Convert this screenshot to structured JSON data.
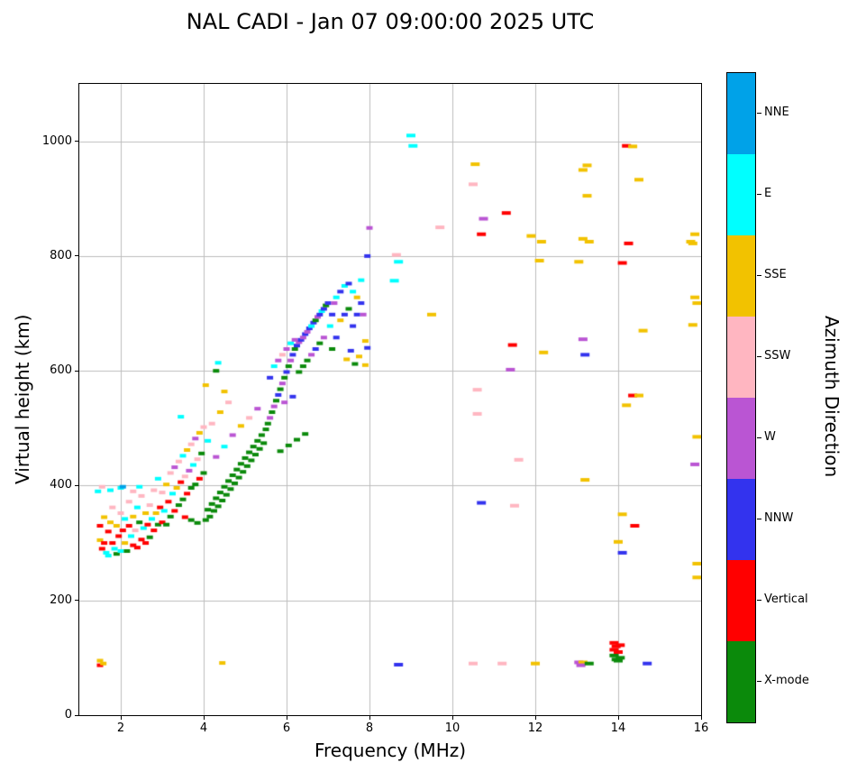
{
  "chart_data": {
    "type": "scatter",
    "title": "NAL CADI - Jan 07 09:00:00 2025 UTC",
    "xlabel": "Frequency (MHz)",
    "ylabel": "Virtual height (km)",
    "xlim": [
      1,
      16
    ],
    "ylim": [
      0,
      1100
    ],
    "xticks": [
      2,
      4,
      6,
      8,
      10,
      12,
      14,
      16
    ],
    "yticks": [
      0,
      200,
      400,
      600,
      800,
      1000
    ],
    "grid": true,
    "grid_color": "#bdbdbd",
    "colorbar": {
      "label": "Azimuth Direction",
      "categories": [
        {
          "label": "NNE",
          "color": "#00A2E8"
        },
        {
          "label": "E",
          "color": "#00FFFF"
        },
        {
          "label": "SSE",
          "color": "#F2C200"
        },
        {
          "label": "SSW",
          "color": "#FFB6C1"
        },
        {
          "label": "W",
          "color": "#BA55D3"
        },
        {
          "label": "NNW",
          "color": "#3333EE"
        },
        {
          "label": "Vertical",
          "color": "#FF0000"
        },
        {
          "label": "X-mode",
          "color": "#0B8A0B"
        }
      ]
    },
    "points": [
      [
        1.45,
        390,
        1
      ],
      [
        1.5,
        330,
        6
      ],
      [
        1.5,
        305,
        2
      ],
      [
        1.55,
        290,
        6
      ],
      [
        1.6,
        300,
        6
      ],
      [
        1.6,
        345,
        2
      ],
      [
        1.65,
        283,
        1
      ],
      [
        1.7,
        278,
        1
      ],
      [
        1.7,
        320,
        6
      ],
      [
        1.75,
        336,
        2
      ],
      [
        1.8,
        300,
        6
      ],
      [
        1.8,
        362,
        3
      ],
      [
        1.85,
        290,
        1
      ],
      [
        1.9,
        281,
        7
      ],
      [
        1.9,
        330,
        2
      ],
      [
        1.95,
        312,
        6
      ],
      [
        2.0,
        286,
        1
      ],
      [
        2.0,
        352,
        3
      ],
      [
        2.0,
        396,
        1
      ],
      [
        2.05,
        322,
        6
      ],
      [
        2.1,
        300,
        2
      ],
      [
        2.1,
        342,
        1
      ],
      [
        2.15,
        286,
        7
      ],
      [
        2.2,
        330,
        6
      ],
      [
        2.2,
        372,
        3
      ],
      [
        2.25,
        312,
        1
      ],
      [
        2.3,
        296,
        6
      ],
      [
        2.3,
        346,
        2
      ],
      [
        2.35,
        322,
        3
      ],
      [
        2.4,
        292,
        6
      ],
      [
        2.4,
        362,
        1
      ],
      [
        2.45,
        336,
        7
      ],
      [
        2.5,
        306,
        6
      ],
      [
        2.5,
        382,
        3
      ],
      [
        2.55,
        326,
        1
      ],
      [
        2.6,
        300,
        6
      ],
      [
        2.6,
        352,
        2
      ],
      [
        1.55,
        398,
        3
      ],
      [
        1.75,
        392,
        1
      ],
      [
        2.05,
        398,
        0
      ],
      [
        2.3,
        390,
        3
      ],
      [
        2.45,
        398,
        1
      ],
      [
        2.65,
        332,
        6
      ],
      [
        2.7,
        310,
        7
      ],
      [
        2.7,
        366,
        3
      ],
      [
        2.75,
        342,
        1
      ],
      [
        2.8,
        322,
        6
      ],
      [
        2.8,
        392,
        3
      ],
      [
        2.85,
        352,
        2
      ],
      [
        2.9,
        332,
        7
      ],
      [
        2.9,
        412,
        1
      ],
      [
        2.95,
        362,
        6
      ],
      [
        3.0,
        336,
        6
      ],
      [
        3.0,
        388,
        3
      ],
      [
        3.05,
        356,
        1
      ],
      [
        3.1,
        332,
        7
      ],
      [
        3.1,
        402,
        2
      ],
      [
        3.15,
        372,
        6
      ],
      [
        3.2,
        346,
        7
      ],
      [
        3.2,
        422,
        3
      ],
      [
        3.25,
        386,
        1
      ],
      [
        3.3,
        356,
        6
      ],
      [
        3.3,
        432,
        4
      ],
      [
        3.35,
        396,
        2
      ],
      [
        3.4,
        366,
        7
      ],
      [
        3.4,
        442,
        3
      ],
      [
        3.45,
        406,
        6
      ],
      [
        3.5,
        376,
        7
      ],
      [
        3.5,
        452,
        1
      ],
      [
        3.55,
        416,
        3
      ],
      [
        3.6,
        386,
        6
      ],
      [
        3.6,
        462,
        2
      ],
      [
        3.65,
        426,
        4
      ],
      [
        3.7,
        396,
        7
      ],
      [
        3.7,
        472,
        3
      ],
      [
        3.75,
        436,
        1
      ],
      [
        3.8,
        402,
        7
      ],
      [
        3.8,
        482,
        4
      ],
      [
        3.85,
        446,
        3
      ],
      [
        3.9,
        412,
        6
      ],
      [
        3.9,
        492,
        2
      ],
      [
        3.95,
        456,
        7
      ],
      [
        4.0,
        422,
        7
      ],
      [
        4.0,
        502,
        3
      ],
      [
        3.45,
        520,
        1
      ],
      [
        3.55,
        345,
        6
      ],
      [
        3.7,
        340,
        7
      ],
      [
        3.85,
        335,
        7
      ],
      [
        4.05,
        340,
        7
      ],
      [
        4.1,
        358,
        7
      ],
      [
        4.1,
        478,
        1
      ],
      [
        4.15,
        346,
        7
      ],
      [
        4.2,
        368,
        7
      ],
      [
        4.2,
        508,
        3
      ],
      [
        4.25,
        356,
        7
      ],
      [
        4.3,
        378,
        7
      ],
      [
        4.3,
        450,
        4
      ],
      [
        4.35,
        364,
        7
      ],
      [
        4.4,
        388,
        7
      ],
      [
        4.4,
        528,
        2
      ],
      [
        4.45,
        374,
        7
      ],
      [
        4.5,
        398,
        7
      ],
      [
        4.5,
        468,
        1
      ],
      [
        4.55,
        384,
        7
      ],
      [
        4.6,
        408,
        7
      ],
      [
        4.6,
        545,
        3
      ],
      [
        4.65,
        394,
        7
      ],
      [
        4.7,
        418,
        7
      ],
      [
        4.7,
        488,
        4
      ],
      [
        4.75,
        404,
        7
      ],
      [
        4.8,
        428,
        7
      ],
      [
        4.85,
        414,
        7
      ],
      [
        4.9,
        438,
        7
      ],
      [
        4.9,
        504,
        2
      ],
      [
        4.95,
        424,
        7
      ],
      [
        5.0,
        448,
        7
      ],
      [
        5.05,
        434,
        7
      ],
      [
        5.1,
        458,
        7
      ],
      [
        5.1,
        518,
        3
      ],
      [
        5.15,
        444,
        7
      ],
      [
        5.2,
        468,
        7
      ],
      [
        5.25,
        454,
        7
      ],
      [
        5.3,
        478,
        7
      ],
      [
        5.3,
        534,
        4
      ],
      [
        5.35,
        464,
        7
      ],
      [
        5.4,
        488,
        7
      ],
      [
        5.45,
        474,
        7
      ],
      [
        5.5,
        498,
        7
      ],
      [
        4.3,
        600,
        7
      ],
      [
        4.35,
        614,
        1
      ],
      [
        4.5,
        564,
        2
      ],
      [
        4.05,
        575,
        2
      ],
      [
        5.55,
        508,
        7
      ],
      [
        5.6,
        518,
        4
      ],
      [
        5.6,
        588,
        5
      ],
      [
        5.65,
        528,
        7
      ],
      [
        5.7,
        538,
        4
      ],
      [
        5.7,
        608,
        1
      ],
      [
        5.75,
        548,
        7
      ],
      [
        5.8,
        558,
        5
      ],
      [
        5.8,
        618,
        4
      ],
      [
        5.85,
        568,
        7
      ],
      [
        5.9,
        578,
        4
      ],
      [
        5.9,
        628,
        3
      ],
      [
        5.95,
        588,
        7
      ],
      [
        6.0,
        598,
        5
      ],
      [
        6.0,
        638,
        4
      ],
      [
        6.05,
        608,
        7
      ],
      [
        6.1,
        618,
        4
      ],
      [
        6.1,
        648,
        1
      ],
      [
        6.15,
        628,
        5
      ],
      [
        6.2,
        638,
        7
      ],
      [
        6.2,
        654,
        4
      ],
      [
        6.25,
        644,
        5
      ],
      [
        6.3,
        650,
        4
      ],
      [
        6.3,
        598,
        7
      ],
      [
        6.35,
        654,
        5
      ],
      [
        6.4,
        658,
        4
      ],
      [
        6.4,
        608,
        7
      ],
      [
        6.45,
        664,
        5
      ],
      [
        6.5,
        668,
        4
      ],
      [
        6.5,
        618,
        7
      ],
      [
        6.55,
        674,
        5
      ],
      [
        6.6,
        678,
        1
      ],
      [
        6.6,
        628,
        4
      ],
      [
        6.65,
        684,
        5
      ],
      [
        6.7,
        688,
        7
      ],
      [
        6.7,
        638,
        5
      ],
      [
        6.75,
        694,
        4
      ],
      [
        6.8,
        698,
        5
      ],
      [
        6.8,
        648,
        7
      ],
      [
        6.85,
        704,
        1
      ],
      [
        6.9,
        708,
        5
      ],
      [
        6.9,
        658,
        4
      ],
      [
        6.95,
        714,
        7
      ],
      [
        7.0,
        718,
        5
      ],
      [
        5.85,
        460,
        7
      ],
      [
        6.05,
        470,
        7
      ],
      [
        6.25,
        480,
        7
      ],
      [
        6.45,
        490,
        7
      ],
      [
        5.95,
        545,
        4
      ],
      [
        6.15,
        555,
        5
      ],
      [
        7.05,
        678,
        1
      ],
      [
        7.1,
        698,
        5
      ],
      [
        7.1,
        638,
        7
      ],
      [
        7.15,
        718,
        4
      ],
      [
        7.2,
        728,
        1
      ],
      [
        7.2,
        658,
        5
      ],
      [
        7.3,
        738,
        5
      ],
      [
        7.3,
        688,
        2
      ],
      [
        7.4,
        748,
        1
      ],
      [
        7.4,
        698,
        5
      ],
      [
        7.5,
        752,
        5
      ],
      [
        7.5,
        708,
        7
      ],
      [
        7.6,
        738,
        1
      ],
      [
        7.6,
        678,
        5
      ],
      [
        7.7,
        728,
        2
      ],
      [
        7.7,
        698,
        5
      ],
      [
        7.8,
        758,
        1
      ],
      [
        7.8,
        718,
        5
      ],
      [
        7.85,
        698,
        4
      ],
      [
        7.9,
        652,
        2
      ],
      [
        7.95,
        800,
        5
      ],
      [
        8.0,
        849,
        4
      ],
      [
        7.45,
        620,
        2
      ],
      [
        7.55,
        635,
        5
      ],
      [
        7.65,
        612,
        7
      ],
      [
        7.75,
        625,
        2
      ],
      [
        7.9,
        610,
        2
      ],
      [
        7.95,
        640,
        5
      ],
      [
        8.6,
        757,
        1
      ],
      [
        8.7,
        790,
        1
      ],
      [
        8.65,
        802,
        3
      ],
      [
        9.0,
        1010,
        1
      ],
      [
        9.05,
        992,
        1
      ],
      [
        9.7,
        850,
        3
      ],
      [
        9.5,
        698,
        2
      ],
      [
        10.55,
        960,
        2
      ],
      [
        10.5,
        925,
        3
      ],
      [
        10.7,
        838,
        6
      ],
      [
        10.75,
        865,
        4
      ],
      [
        10.6,
        567,
        3
      ],
      [
        10.6,
        525,
        3
      ],
      [
        10.7,
        370,
        5
      ],
      [
        11.3,
        875,
        6
      ],
      [
        11.45,
        645,
        6
      ],
      [
        11.4,
        602,
        4
      ],
      [
        11.5,
        365,
        3
      ],
      [
        11.6,
        445,
        3
      ],
      [
        11.9,
        835,
        2
      ],
      [
        12.15,
        825,
        2
      ],
      [
        12.1,
        792,
        2
      ],
      [
        12.2,
        632,
        2
      ],
      [
        13.05,
        790,
        2
      ],
      [
        13.15,
        950,
        2
      ],
      [
        13.25,
        958,
        2
      ],
      [
        13.25,
        905,
        2
      ],
      [
        13.15,
        830,
        2
      ],
      [
        13.3,
        825,
        2
      ],
      [
        13.15,
        655,
        4
      ],
      [
        13.2,
        628,
        5
      ],
      [
        13.2,
        410,
        2
      ],
      [
        14.2,
        992,
        6
      ],
      [
        14.35,
        991,
        2
      ],
      [
        14.5,
        933,
        2
      ],
      [
        14.25,
        822,
        6
      ],
      [
        14.1,
        788,
        6
      ],
      [
        14.6,
        670,
        2
      ],
      [
        14.35,
        557,
        6
      ],
      [
        14.5,
        557,
        2
      ],
      [
        14.2,
        540,
        2
      ],
      [
        14.1,
        350,
        2
      ],
      [
        14.4,
        330,
        6
      ],
      [
        14.0,
        302,
        2
      ],
      [
        14.1,
        283,
        5
      ],
      [
        15.75,
        825,
        2
      ],
      [
        15.85,
        838,
        2
      ],
      [
        15.8,
        822,
        2
      ],
      [
        15.85,
        728,
        2
      ],
      [
        15.9,
        718,
        2
      ],
      [
        15.8,
        680,
        2
      ],
      [
        15.9,
        485,
        2
      ],
      [
        15.85,
        437,
        4
      ],
      [
        15.9,
        264,
        2
      ],
      [
        15.9,
        240,
        2
      ],
      [
        1.5,
        95,
        2
      ],
      [
        1.5,
        87,
        6
      ],
      [
        1.58,
        90,
        2
      ],
      [
        4.45,
        91,
        2
      ],
      [
        8.7,
        88,
        5
      ],
      [
        10.5,
        90,
        3
      ],
      [
        11.2,
        90,
        3
      ],
      [
        12.0,
        90,
        2
      ],
      [
        13.05,
        92,
        4
      ],
      [
        13.15,
        92,
        2
      ],
      [
        13.1,
        87,
        4
      ],
      [
        13.3,
        90,
        7
      ],
      [
        13.9,
        126,
        6
      ],
      [
        13.9,
        114,
        6
      ],
      [
        13.95,
        120,
        6
      ],
      [
        13.9,
        104,
        7
      ],
      [
        13.95,
        97,
        7
      ],
      [
        14.0,
        110,
        6
      ],
      [
        14.0,
        95,
        7
      ],
      [
        14.05,
        122,
        6
      ],
      [
        14.05,
        100,
        7
      ],
      [
        14.7,
        90,
        5
      ]
    ]
  }
}
